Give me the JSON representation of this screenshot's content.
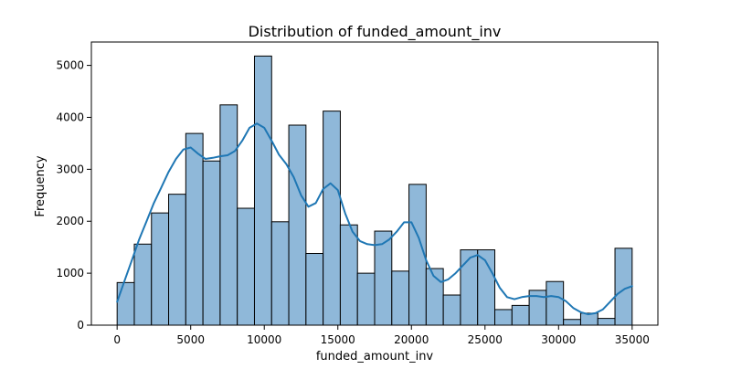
{
  "chart_data": {
    "type": "bar",
    "title": "Distribution of funded_amount_inv",
    "xlabel": "funded_amount_inv",
    "ylabel": "Frequency",
    "xlim": [
      -1750,
      36750
    ],
    "ylim": [
      0,
      5450
    ],
    "xticks": [
      0,
      5000,
      10000,
      15000,
      20000,
      25000,
      30000,
      35000
    ],
    "yticks": [
      0,
      1000,
      2000,
      3000,
      4000,
      5000
    ],
    "bin_width": 1166.67,
    "bin_start": 0,
    "values": [
      820,
      1560,
      2160,
      2520,
      3690,
      3160,
      4240,
      2250,
      5180,
      1990,
      3850,
      1380,
      4120,
      1930,
      1000,
      1810,
      1040,
      2710,
      1090,
      580,
      1450,
      1450,
      300,
      380,
      670,
      840,
      110,
      230,
      130,
      1480
    ],
    "kde": {
      "x": [
        0,
        500,
        1000,
        1500,
        2000,
        2500,
        3000,
        3500,
        4000,
        4500,
        5000,
        5500,
        6000,
        6500,
        7000,
        7500,
        8000,
        8500,
        9000,
        9500,
        10000,
        10500,
        11000,
        11500,
        12000,
        12500,
        13000,
        13500,
        14000,
        14500,
        15000,
        15500,
        16000,
        16500,
        17000,
        17500,
        18000,
        18500,
        19000,
        19500,
        20000,
        20500,
        21000,
        21500,
        22000,
        22500,
        23000,
        23500,
        24000,
        24500,
        25000,
        25500,
        26000,
        26500,
        27000,
        27500,
        28000,
        28500,
        29000,
        29500,
        30000,
        30500,
        31000,
        31500,
        32000,
        32500,
        33000,
        33500,
        34000,
        34500,
        35000
      ],
      "y": [
        450,
        850,
        1250,
        1650,
        2000,
        2350,
        2650,
        2950,
        3200,
        3380,
        3420,
        3300,
        3200,
        3220,
        3250,
        3270,
        3350,
        3550,
        3800,
        3880,
        3800,
        3550,
        3280,
        3100,
        2850,
        2500,
        2280,
        2350,
        2620,
        2730,
        2600,
        2150,
        1800,
        1620,
        1560,
        1540,
        1560,
        1650,
        1800,
        1980,
        1980,
        1680,
        1250,
        950,
        830,
        880,
        1000,
        1150,
        1300,
        1350,
        1250,
        1000,
        720,
        540,
        500,
        540,
        560,
        560,
        540,
        560,
        540,
        460,
        330,
        250,
        210,
        230,
        300,
        450,
        600,
        700,
        750
      ]
    },
    "bar_fill": "#8fb8d9",
    "bar_stroke": "#000000",
    "kde_color": "#1f77b4",
    "grid": false,
    "legend": "none"
  }
}
